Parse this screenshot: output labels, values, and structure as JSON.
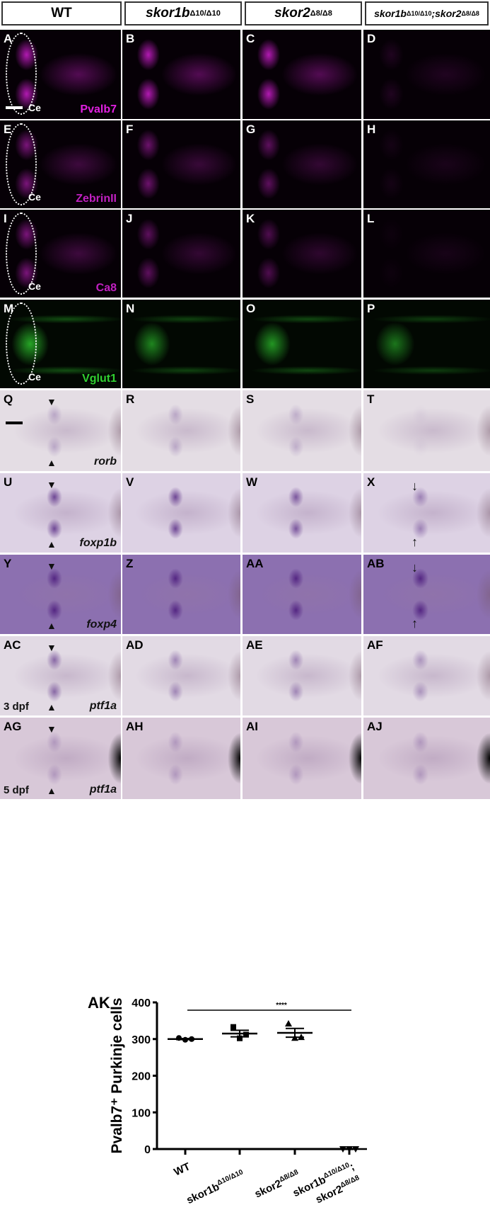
{
  "headers": [
    {
      "base": "WT",
      "sup": ""
    },
    {
      "base": "skor1b",
      "sup": "Δ10/Δ10"
    },
    {
      "base": "skor2",
      "sup": "Δ8/Δ8"
    },
    {
      "base": "skor1b",
      "sup": "Δ10/Δ10",
      "base2": ";skor2",
      "sup2": "Δ8/Δ8"
    }
  ],
  "rows": [
    {
      "type": "fluor",
      "color": "#e020e0",
      "marker": "Pvalb7",
      "labels": [
        "A",
        "B",
        "C",
        "D"
      ],
      "ce": "Ce",
      "strength": [
        1,
        1,
        1,
        0.15
      ]
    },
    {
      "type": "fluor",
      "color": "#c020c0",
      "marker": "ZebrinII",
      "labels": [
        "E",
        "F",
        "G",
        "H"
      ],
      "ce": "Ce",
      "strength": [
        0.8,
        0.7,
        0.6,
        0.1
      ]
    },
    {
      "type": "fluor",
      "color": "#c020c0",
      "marker": "Ca8",
      "labels": [
        "I",
        "J",
        "K",
        "L"
      ],
      "ce": "Ce",
      "strength": [
        0.8,
        0.6,
        0.5,
        0.05
      ]
    },
    {
      "type": "fluor",
      "color": "#30d030",
      "marker": "Vglut1",
      "labels": [
        "M",
        "N",
        "O",
        "P"
      ],
      "ce": "Ce",
      "strength": [
        1,
        0.8,
        0.9,
        0.7
      ]
    },
    {
      "type": "ish",
      "gene": "rorb",
      "labels": [
        "Q",
        "R",
        "S",
        "T"
      ],
      "bg": "#e4dde4",
      "strength": [
        0.3,
        0.3,
        0.25,
        0.05
      ]
    },
    {
      "type": "ish",
      "gene": "foxp1b",
      "labels": [
        "U",
        "V",
        "W",
        "X"
      ],
      "bg": "#ddd2e4",
      "strength": [
        0.9,
        0.9,
        0.8,
        0.5
      ]
    },
    {
      "type": "ish",
      "gene": "foxp4",
      "labels": [
        "Y",
        "Z",
        "AA",
        "AB"
      ],
      "bg": "#8c70b0",
      "strength": [
        1,
        1,
        1,
        1
      ]
    },
    {
      "type": "ish",
      "gene": "ptf1a",
      "stage": "3 dpf",
      "labels": [
        "AC",
        "AD",
        "AE",
        "AF"
      ],
      "bg": "#e2dae4",
      "strength": [
        0.7,
        0.5,
        0.5,
        0.4
      ]
    },
    {
      "type": "ish",
      "gene": "ptf1a",
      "stage": "5 dpf",
      "labels": [
        "AG",
        "AH",
        "AI",
        "AJ"
      ],
      "bg": "#d8c8d8",
      "strength": [
        0.3,
        0.3,
        0.3,
        0.3
      ]
    }
  ],
  "chart_data": {
    "type": "scatter",
    "panel_label": "AK",
    "ylabel": "Pvalb7⁺ Purkinje cells",
    "ylim": [
      0,
      400
    ],
    "yticks": [
      0,
      100,
      200,
      300,
      400
    ],
    "categories": [
      {
        "base": "WT",
        "sup": ""
      },
      {
        "base": "skor1b",
        "sup": "Δ10/Δ10"
      },
      {
        "base": "skor2",
        "sup": "Δ8/Δ8"
      },
      {
        "base": "skor1b",
        "sup": "Δ10/Δ10",
        "base2": "skor2",
        "sup2": "Δ8/Δ8"
      }
    ],
    "series": [
      {
        "marker": "circle",
        "values": [
          303,
          298,
          300
        ],
        "mean": 300,
        "sem": 1.5
      },
      {
        "marker": "square",
        "values": [
          333,
          302,
          312
        ],
        "mean": 315,
        "sem": 9
      },
      {
        "marker": "triangle",
        "values": [
          342,
          303,
          305
        ],
        "mean": 317,
        "sem": 12
      },
      {
        "marker": "inverted-triangle",
        "values": [
          0,
          0,
          0
        ],
        "mean": 0,
        "sem": 0
      }
    ],
    "significance": {
      "label": "****",
      "from": 0,
      "to": 3
    }
  }
}
